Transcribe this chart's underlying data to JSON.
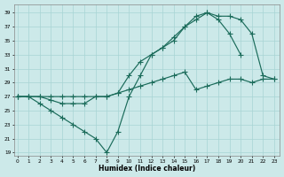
{
  "xlabel": "Humidex (Indice chaleur)",
  "xlim_min": -0.3,
  "xlim_max": 23.5,
  "ylim_min": 18.5,
  "ylim_max": 40.2,
  "yticks": [
    19,
    21,
    23,
    25,
    27,
    29,
    31,
    33,
    35,
    37,
    39
  ],
  "xticks": [
    0,
    1,
    2,
    3,
    4,
    5,
    6,
    7,
    8,
    9,
    10,
    11,
    12,
    13,
    14,
    15,
    16,
    17,
    18,
    19,
    20,
    21,
    22,
    23
  ],
  "bg_color": "#cce9e9",
  "grid_color": "#a8d4d4",
  "line_color": "#1a6b5a",
  "line1_x": [
    0,
    1,
    2,
    3,
    4,
    5,
    6,
    7,
    8,
    9,
    10,
    11,
    12,
    13,
    14,
    15,
    16,
    17,
    18,
    19,
    20
  ],
  "line1_y": [
    27,
    27,
    26,
    25,
    24,
    23,
    22,
    21,
    19,
    22,
    27,
    30,
    33,
    34,
    35,
    37,
    38,
    39,
    38,
    36,
    33
  ],
  "line2_x": [
    0,
    1,
    2,
    3,
    4,
    5,
    6,
    7,
    8,
    9,
    10,
    11,
    12,
    13,
    14,
    15,
    16,
    17,
    18,
    19,
    20,
    21,
    22,
    23
  ],
  "line2_y": [
    27,
    27,
    27,
    26.5,
    26,
    26,
    26,
    27,
    27,
    27.5,
    30,
    32,
    33,
    34,
    35.5,
    37,
    38.5,
    39,
    38.5,
    38.5,
    38,
    36,
    30,
    29.5
  ],
  "line3_x": [
    0,
    1,
    2,
    3,
    4,
    5,
    6,
    7,
    8,
    9,
    10,
    11,
    12,
    13,
    14,
    15,
    16,
    17,
    18,
    19,
    20,
    21,
    22,
    23
  ],
  "line3_y": [
    27,
    27,
    27,
    27,
    27,
    27,
    27,
    27,
    27,
    27.5,
    28,
    28.5,
    29,
    29.5,
    30,
    30.5,
    28,
    28.5,
    29,
    29.5,
    29.5,
    29,
    29.5,
    29.5
  ]
}
